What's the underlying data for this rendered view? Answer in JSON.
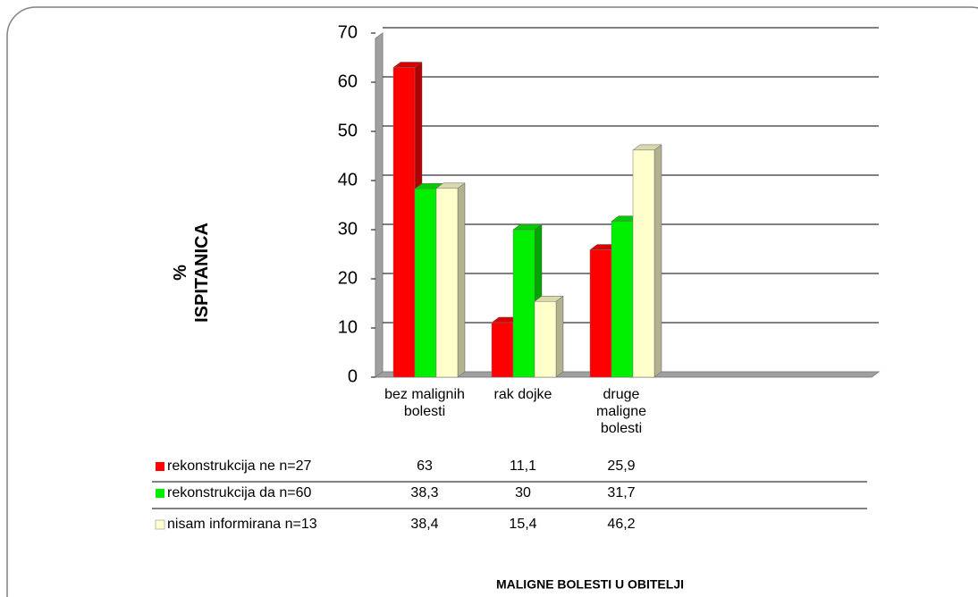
{
  "chart_data": {
    "type": "bar",
    "ylabel": [
      "%",
      "ISPITANICA"
    ],
    "xlabel": "MALIGNE BOLESTI U OBITELJI",
    "categories": [
      "bez malignih bolesti",
      "rak dojke",
      "druge maligne bolesti"
    ],
    "series": [
      {
        "name": "rekonstrukcija ne n=27",
        "color": "#ff0000",
        "values": [
          63,
          11.1,
          25.9
        ],
        "value_labels": [
          "63",
          "11,1",
          "25,9"
        ]
      },
      {
        "name": "rekonstrukcija da n=60",
        "color": "#00ee00",
        "values": [
          38.3,
          30,
          31.7
        ],
        "value_labels": [
          "38,3",
          "30",
          "31,7"
        ]
      },
      {
        "name": "nisam informirana n=13",
        "color": "#ffffcc",
        "values": [
          38.4,
          15.4,
          46.2
        ],
        "value_labels": [
          "38,4",
          "15,4",
          "46,2"
        ]
      }
    ],
    "ylim": [
      0,
      70
    ],
    "yticks": [
      0,
      10,
      20,
      30,
      40,
      50,
      60,
      70
    ],
    "grid": true
  }
}
